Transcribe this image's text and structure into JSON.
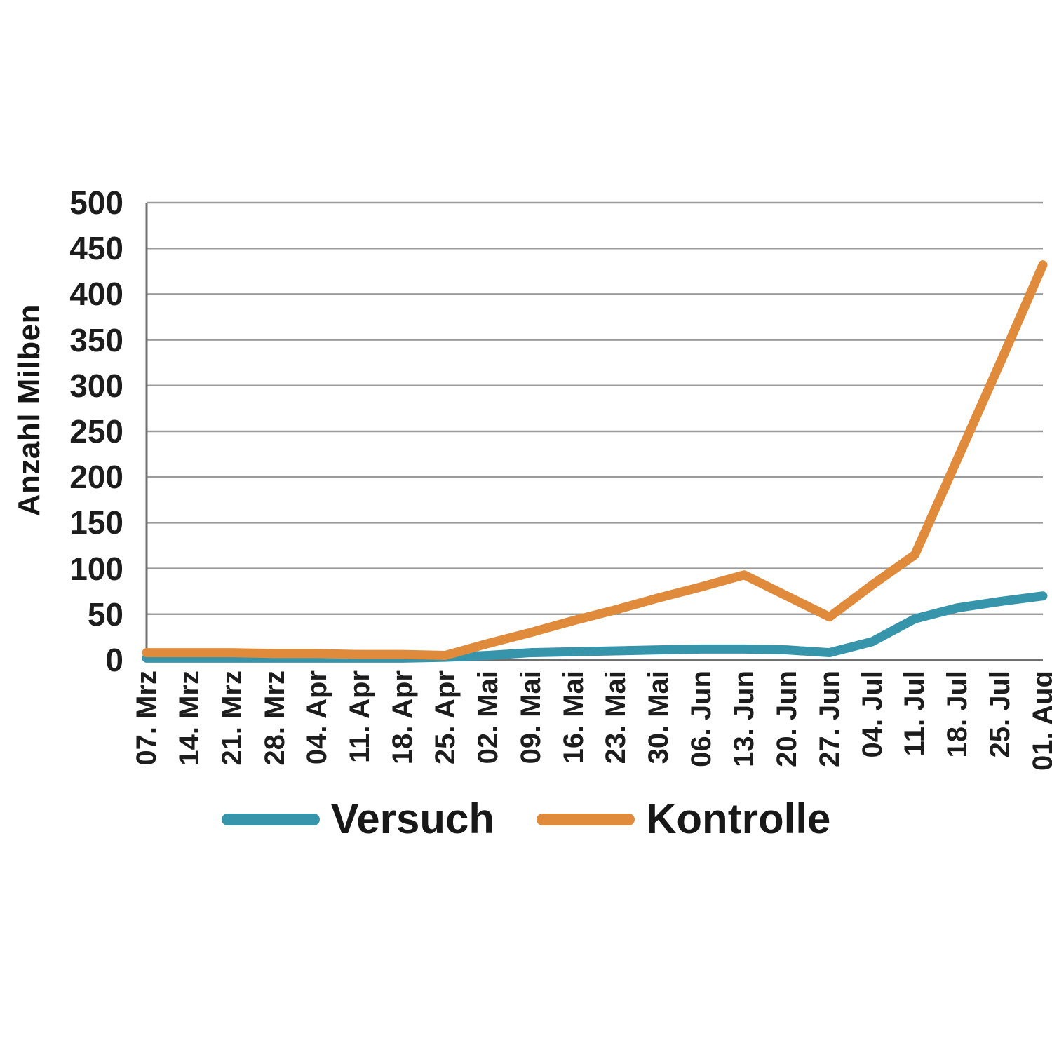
{
  "chart_data": {
    "type": "line",
    "title": "",
    "ylabel": "Anzahl Milben",
    "xlabel": "",
    "ylim": [
      0,
      500
    ],
    "ytick_step": 50,
    "grid": true,
    "legend_position": "bottom",
    "categories": [
      "07. Mrz",
      "14. Mrz",
      "21. Mrz",
      "28. Mrz",
      "04. Apr",
      "11. Apr",
      "18. Apr",
      "25. Apr",
      "02. Mai",
      "09. Mai",
      "16. Mai",
      "23. Mai",
      "30. Mai",
      "06. Jun",
      "13. Jun",
      "20. Jun",
      "27. Jun",
      "04. Jul",
      "11. Jul",
      "18. Jul",
      "25. Jul",
      "01. Aug"
    ],
    "series": [
      {
        "name": "Versuch",
        "color": "#3795ab",
        "values": [
          2,
          2,
          2,
          2,
          2,
          2,
          2,
          3,
          5,
          8,
          9,
          10,
          11,
          12,
          12,
          11,
          8,
          20,
          45,
          57,
          64,
          70
        ]
      },
      {
        "name": "Kontrolle",
        "color": "#e08a3c",
        "values": [
          8,
          8,
          8,
          7,
          7,
          6,
          6,
          5,
          18,
          30,
          43,
          55,
          68,
          80,
          93,
          70,
          47,
          82,
          115,
          220,
          325,
          432
        ]
      }
    ]
  },
  "style": {
    "grid_color": "#9b9b9b",
    "axis_color": "#707070",
    "text_color": "#1d1d1d",
    "background": "#ffffff"
  }
}
